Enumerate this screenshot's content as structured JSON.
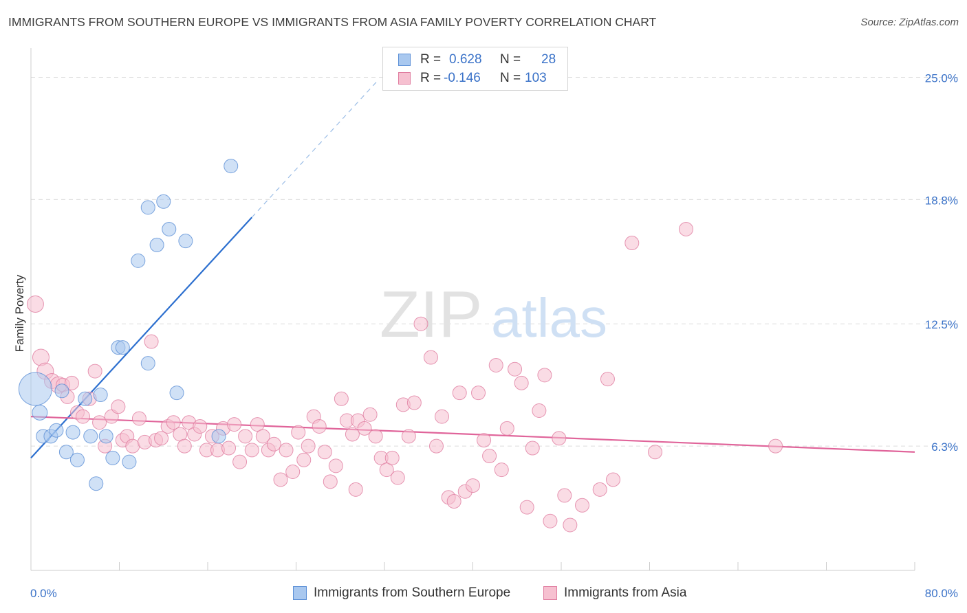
{
  "title": "IMMIGRANTS FROM SOUTHERN EUROPE VS IMMIGRANTS FROM ASIA FAMILY POVERTY CORRELATION CHART",
  "source": "Source: ZipAtlas.com",
  "watermark": {
    "zip": "ZIP",
    "atlas": "atlas"
  },
  "legend": {
    "rows": [
      {
        "r_label": "R =",
        "r_value": "0.628",
        "n_label": "N =",
        "n_value": "28",
        "color": "#a9c8ef",
        "border": "#5b8fd6"
      },
      {
        "r_label": "R =",
        "r_value": "-0.146",
        "n_label": "N =",
        "n_value": "103",
        "color": "#f6c0d0",
        "border": "#e07da0"
      }
    ]
  },
  "bottom_legend": [
    {
      "label": "Immigrants from Southern Europe",
      "color": "#a9c8ef",
      "border": "#5b8fd6"
    },
    {
      "label": "Immigrants from Asia",
      "color": "#f6c0d0",
      "border": "#e07da0"
    }
  ],
  "chart_data": {
    "type": "scatter",
    "title": "IMMIGRANTS FROM SOUTHERN EUROPE VS IMMIGRANTS FROM ASIA FAMILY POVERTY CORRELATION CHART",
    "xlabel": "",
    "ylabel": "Family Poverty",
    "xlim": [
      0,
      80
    ],
    "ylim": [
      0,
      26.2
    ],
    "x_tick_labels": [
      "0.0%",
      "80.0%"
    ],
    "y_ticks": [
      6.3,
      12.5,
      18.8,
      25.0
    ],
    "y_tick_labels": [
      "6.3%",
      "12.5%",
      "18.8%",
      "25.0%"
    ],
    "grid": true,
    "legend_position": "top-center",
    "colors": {
      "blue_fill": "#a9c8ef",
      "blue_stroke": "#5b8fd6",
      "blue_line": "#2c6fcf",
      "pink_fill": "#f6c0d0",
      "pink_stroke": "#e07da0",
      "pink_line": "#e0649a",
      "tick_label": "#3a72c8",
      "grid": "#dcdcdc",
      "axis": "#cccccc"
    },
    "series": [
      {
        "name": "Immigrants from Southern Europe",
        "color": "#a9c8ef",
        "points": [
          [
            0.4,
            9.2,
            24
          ],
          [
            0.8,
            8.0,
            11
          ],
          [
            1.1,
            6.8,
            10
          ],
          [
            1.8,
            6.8,
            10
          ],
          [
            2.3,
            7.1,
            10
          ],
          [
            2.8,
            9.1,
            10
          ],
          [
            3.2,
            6.0,
            10
          ],
          [
            3.8,
            7.0,
            10
          ],
          [
            4.2,
            5.6,
            10
          ],
          [
            4.9,
            8.7,
            10
          ],
          [
            5.4,
            6.8,
            10
          ],
          [
            5.9,
            4.4,
            10
          ],
          [
            6.3,
            8.9,
            10
          ],
          [
            6.8,
            6.8,
            10
          ],
          [
            7.4,
            5.7,
            10
          ],
          [
            7.9,
            11.3,
            10
          ],
          [
            8.3,
            11.3,
            10
          ],
          [
            8.9,
            5.5,
            10
          ],
          [
            9.7,
            15.7,
            10
          ],
          [
            10.6,
            10.5,
            10
          ],
          [
            10.6,
            18.4,
            10
          ],
          [
            11.4,
            16.5,
            10
          ],
          [
            12.0,
            18.7,
            10
          ],
          [
            12.5,
            17.3,
            10
          ],
          [
            13.2,
            9.0,
            10
          ],
          [
            14.0,
            16.7,
            10
          ],
          [
            17.0,
            6.8,
            10
          ],
          [
            18.1,
            20.5,
            10
          ]
        ]
      },
      {
        "name": "Immigrants from Asia",
        "color": "#f6c0d0",
        "points": [
          [
            0.4,
            13.5,
            12
          ],
          [
            0.9,
            10.8,
            12
          ],
          [
            1.3,
            10.1,
            12
          ],
          [
            1.9,
            9.6,
            11
          ],
          [
            2.5,
            9.4,
            12
          ],
          [
            2.9,
            9.4,
            10
          ],
          [
            3.3,
            8.8,
            10
          ],
          [
            3.7,
            9.5,
            10
          ],
          [
            4.2,
            8.0,
            10
          ],
          [
            4.7,
            7.8,
            10
          ],
          [
            5.3,
            8.7,
            10
          ],
          [
            5.8,
            10.1,
            10
          ],
          [
            6.2,
            7.5,
            10
          ],
          [
            6.7,
            6.3,
            10
          ],
          [
            7.3,
            7.8,
            10
          ],
          [
            7.9,
            8.3,
            10
          ],
          [
            8.3,
            6.6,
            10
          ],
          [
            8.7,
            6.8,
            10
          ],
          [
            9.2,
            6.3,
            10
          ],
          [
            9.8,
            7.7,
            10
          ],
          [
            10.3,
            6.5,
            10
          ],
          [
            10.9,
            11.6,
            10
          ],
          [
            11.3,
            6.6,
            10
          ],
          [
            11.8,
            6.7,
            10
          ],
          [
            12.4,
            7.3,
            10
          ],
          [
            12.9,
            7.5,
            10
          ],
          [
            13.5,
            6.9,
            10
          ],
          [
            13.9,
            6.3,
            10
          ],
          [
            14.3,
            7.5,
            10
          ],
          [
            14.8,
            6.9,
            10
          ],
          [
            15.3,
            7.3,
            10
          ],
          [
            15.9,
            6.1,
            10
          ],
          [
            16.4,
            6.8,
            10
          ],
          [
            16.9,
            6.1,
            10
          ],
          [
            17.4,
            7.2,
            10
          ],
          [
            17.9,
            6.2,
            10
          ],
          [
            18.4,
            7.4,
            10
          ],
          [
            18.9,
            5.5,
            10
          ],
          [
            19.4,
            6.8,
            10
          ],
          [
            20.0,
            6.1,
            10
          ],
          [
            20.5,
            7.4,
            10
          ],
          [
            21.0,
            6.8,
            10
          ],
          [
            21.5,
            6.1,
            10
          ],
          [
            22.0,
            6.4,
            10
          ],
          [
            22.6,
            4.6,
            10
          ],
          [
            23.1,
            6.1,
            10
          ],
          [
            23.7,
            5.0,
            10
          ],
          [
            24.2,
            7.0,
            10
          ],
          [
            24.7,
            5.6,
            10
          ],
          [
            25.1,
            6.3,
            10
          ],
          [
            25.6,
            7.8,
            10
          ],
          [
            26.1,
            7.3,
            10
          ],
          [
            26.6,
            6.0,
            10
          ],
          [
            27.1,
            4.5,
            10
          ],
          [
            27.6,
            5.3,
            10
          ],
          [
            28.1,
            8.7,
            10
          ],
          [
            28.6,
            7.6,
            10
          ],
          [
            29.1,
            6.9,
            10
          ],
          [
            29.6,
            7.6,
            10
          ],
          [
            30.2,
            7.2,
            10
          ],
          [
            30.7,
            7.9,
            10
          ],
          [
            31.2,
            6.8,
            10
          ],
          [
            31.7,
            5.7,
            10
          ],
          [
            32.2,
            5.1,
            10
          ],
          [
            32.7,
            5.7,
            10
          ],
          [
            33.2,
            4.7,
            10
          ],
          [
            33.7,
            8.4,
            10
          ],
          [
            34.2,
            6.8,
            10
          ],
          [
            34.7,
            8.5,
            10
          ],
          [
            35.3,
            12.5,
            10
          ],
          [
            36.2,
            10.8,
            10
          ],
          [
            36.7,
            6.3,
            10
          ],
          [
            37.2,
            7.8,
            10
          ],
          [
            37.8,
            3.7,
            10
          ],
          [
            38.3,
            3.5,
            10
          ],
          [
            38.8,
            9.0,
            10
          ],
          [
            39.3,
            4.0,
            10
          ],
          [
            40.0,
            4.3,
            10
          ],
          [
            40.5,
            9.0,
            10
          ],
          [
            41.0,
            6.6,
            10
          ],
          [
            41.5,
            5.8,
            10
          ],
          [
            42.1,
            10.4,
            10
          ],
          [
            42.6,
            5.1,
            10
          ],
          [
            43.1,
            7.2,
            10
          ],
          [
            43.8,
            10.2,
            10
          ],
          [
            44.4,
            9.5,
            10
          ],
          [
            44.9,
            3.2,
            10
          ],
          [
            45.4,
            6.2,
            10
          ],
          [
            46.0,
            8.1,
            10
          ],
          [
            46.5,
            9.9,
            10
          ],
          [
            47.0,
            2.5,
            10
          ],
          [
            47.8,
            6.7,
            10
          ],
          [
            48.3,
            3.8,
            10
          ],
          [
            48.8,
            2.3,
            10
          ],
          [
            49.9,
            3.3,
            10
          ],
          [
            51.5,
            4.1,
            10
          ],
          [
            52.2,
            9.7,
            10
          ],
          [
            52.7,
            4.6,
            10
          ],
          [
            54.4,
            16.6,
            10
          ],
          [
            56.5,
            6.0,
            10
          ],
          [
            59.3,
            17.3,
            10
          ],
          [
            67.4,
            6.3,
            10
          ],
          [
            29.4,
            4.1,
            10
          ]
        ]
      }
    ],
    "trend_lines": [
      {
        "series": "Immigrants from Southern Europe",
        "solid": [
          [
            0,
            5.7
          ],
          [
            20.0,
            17.9
          ]
        ],
        "dashed": [
          [
            20.0,
            17.9
          ],
          [
            31.5,
            24.9
          ]
        ]
      },
      {
        "series": "Immigrants from Asia",
        "solid": [
          [
            0,
            7.8
          ],
          [
            80,
            6.0
          ]
        ]
      }
    ]
  }
}
